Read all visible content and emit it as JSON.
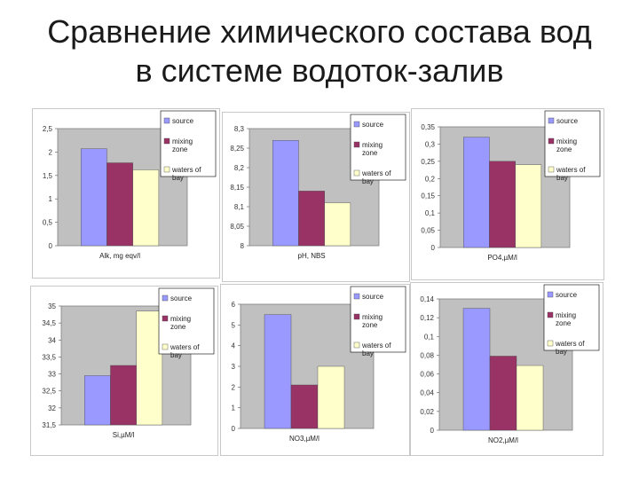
{
  "slide": {
    "title_line1": "Сравнение химического состава вод",
    "title_line2": "в системе водоток-залив"
  },
  "colors": {
    "plot_bg": "#c0c0c0",
    "source": "#9999ff",
    "mixing_zone": "#993366",
    "waters_of_bay": "#ffffcc"
  },
  "legend": [
    {
      "name": "source",
      "lines": [
        "source"
      ],
      "color": "#9999ff"
    },
    {
      "name": "mixing-zone",
      "lines": [
        "mixing",
        "zone"
      ],
      "color": "#993366"
    },
    {
      "name": "waters-of-bay",
      "lines": [
        "waters of",
        "bay"
      ],
      "color": "#ffffcc"
    }
  ],
  "chart_data": [
    {
      "type": "bar",
      "xlabel": "Alk, mg eqv/l",
      "ylim": [
        0,
        2.5
      ],
      "ticks": [
        "0",
        "0,5",
        "1",
        "1,5",
        "2",
        "2,5"
      ],
      "values": [
        2.07,
        1.77,
        1.62
      ],
      "legend_placement": "top-right"
    },
    {
      "type": "bar",
      "xlabel": "pH, NBS",
      "ylim": [
        8,
        8.3
      ],
      "ticks": [
        "8",
        "8,05",
        "8,1",
        "8,15",
        "8,2",
        "8,25",
        "8,3"
      ],
      "values": [
        8.27,
        8.14,
        8.11
      ],
      "legend_placement": "top-right"
    },
    {
      "type": "bar",
      "xlabel": "PO4,µM/l",
      "ylim": [
        0,
        0.35
      ],
      "ticks": [
        "0",
        "0,05",
        "0,1",
        "0,15",
        "0,2",
        "0,25",
        "0,3",
        "0,35"
      ],
      "values": [
        0.32,
        0.25,
        0.24
      ],
      "legend_placement": "top-right"
    },
    {
      "type": "bar",
      "xlabel": "Si,µM/l",
      "ylim": [
        31.5,
        35
      ],
      "ticks": [
        "31,5",
        "32",
        "32,5",
        "33",
        "33,5",
        "34",
        "34,5",
        "35"
      ],
      "values": [
        32.95,
        33.25,
        34.85
      ],
      "legend_placement": "top-right"
    },
    {
      "type": "bar",
      "xlabel": "NO3,µM/l",
      "ylim": [
        0,
        6
      ],
      "ticks": [
        "0",
        "1",
        "2",
        "3",
        "4",
        "5",
        "6"
      ],
      "values": [
        5.5,
        2.1,
        3.0
      ],
      "legend_placement": "top-right"
    },
    {
      "type": "bar",
      "xlabel": "NO2,µM/l",
      "ylim": [
        0,
        0.14
      ],
      "ticks": [
        "0",
        "0,02",
        "0,04",
        "0,06",
        "0,08",
        "0,1",
        "0,12",
        "0,14"
      ],
      "values": [
        0.13,
        0.079,
        0.069
      ],
      "legend_placement": "top-right"
    }
  ]
}
